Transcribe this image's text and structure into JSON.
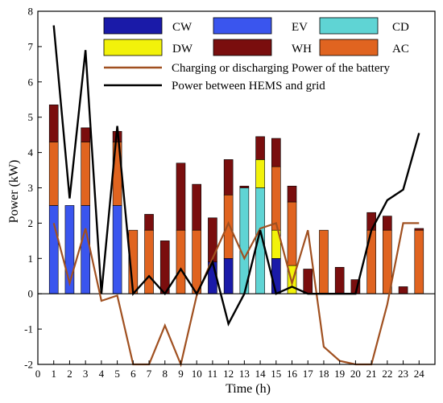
{
  "chart_data": {
    "type": "bar",
    "xlabel": "Time (h)",
    "ylabel": "Power (kW)",
    "xlim": [
      0,
      25
    ],
    "ylim": [
      -2,
      8
    ],
    "x_ticks": [
      0,
      1,
      2,
      3,
      4,
      5,
      6,
      7,
      8,
      9,
      10,
      11,
      12,
      13,
      14,
      15,
      16,
      17,
      18,
      19,
      20,
      21,
      22,
      23,
      24
    ],
    "y_ticks": [
      -2,
      -1,
      0,
      1,
      2,
      3,
      4,
      5,
      6,
      7,
      8
    ],
    "grid": false,
    "legend_placement": "top",
    "categories": [
      1,
      2,
      3,
      4,
      5,
      6,
      7,
      8,
      9,
      10,
      11,
      12,
      13,
      14,
      15,
      16,
      17,
      18,
      19,
      20,
      21,
      22,
      23,
      24
    ],
    "stacked_series": [
      {
        "key": "CW",
        "name": "CW",
        "color": "#1a1aa8",
        "values": [
          0,
          0,
          0,
          0,
          0,
          0,
          0,
          0,
          0,
          0,
          0.9,
          1.0,
          0,
          0,
          1.0,
          0,
          0,
          0,
          0,
          0,
          0,
          0,
          0,
          0
        ]
      },
      {
        "key": "EV",
        "name": "EV",
        "color": "#3a55ee",
        "values": [
          2.5,
          2.5,
          2.5,
          0,
          2.5,
          0,
          0,
          0,
          0,
          0,
          0,
          0,
          0,
          0,
          0,
          0,
          0,
          0,
          0,
          0,
          0,
          0,
          0,
          0
        ]
      },
      {
        "key": "CD",
        "name": "CD",
        "color": "#5fd4d4",
        "values": [
          0,
          0,
          0,
          0,
          0,
          0,
          0,
          0,
          0,
          0,
          0,
          0,
          3.0,
          3.0,
          0,
          0,
          0,
          0,
          0,
          0,
          0,
          0,
          0,
          0
        ]
      },
      {
        "key": "DW",
        "name": "DW",
        "color": "#f2f20a",
        "values": [
          0,
          0,
          0,
          0,
          0,
          0,
          0,
          0,
          0,
          0,
          0,
          0,
          0,
          0.8,
          0.8,
          0.8,
          0,
          0,
          0,
          0,
          0,
          0,
          0,
          0
        ]
      },
      {
        "key": "AC",
        "name": "AC",
        "color": "#e06420",
        "values": [
          1.8,
          0,
          1.8,
          0,
          1.8,
          1.8,
          1.8,
          0,
          1.8,
          1.8,
          0,
          1.8,
          0,
          0,
          1.8,
          1.8,
          0,
          1.8,
          0,
          0,
          1.8,
          1.8,
          0,
          1.8
        ]
      },
      {
        "key": "WH",
        "name": "WH",
        "color": "#7a0e0e",
        "values": [
          1.05,
          0,
          0.4,
          0,
          0.3,
          0,
          0.45,
          1.5,
          1.9,
          1.3,
          1.25,
          1.0,
          0.05,
          0.65,
          0.8,
          0.45,
          0.7,
          0,
          0.75,
          0.4,
          0.5,
          0.4,
          0.2,
          0.05
        ]
      }
    ],
    "line_series": [
      {
        "key": "battery",
        "name": "Charging or discharging Power of the battery",
        "color": "#a05020",
        "x": [
          1,
          2,
          3,
          4,
          5,
          6,
          7,
          8,
          9,
          10,
          11,
          12,
          13,
          14,
          15,
          16,
          17,
          18,
          19,
          20,
          21,
          22,
          23,
          24
        ],
        "values": [
          2.0,
          0.3,
          1.85,
          -0.2,
          -0.05,
          -2.0,
          -2.0,
          -0.9,
          -2.0,
          -0.05,
          1.0,
          2.0,
          1.0,
          1.85,
          2.0,
          0.3,
          1.8,
          -1.5,
          -1.9,
          -2.0,
          -2.0,
          -0.3,
          2.0,
          2.0
        ]
      },
      {
        "key": "grid",
        "name": "Power between HEMS and grid",
        "color": "#000000",
        "x": [
          1,
          2,
          3,
          4,
          5,
          6,
          7,
          8,
          9,
          10,
          11,
          12,
          13,
          14,
          15,
          16,
          17,
          18,
          19,
          20,
          21,
          22,
          23,
          24
        ],
        "values": [
          7.6,
          2.7,
          6.9,
          0,
          4.75,
          0,
          0.5,
          0,
          0.7,
          0,
          0.9,
          -0.85,
          0,
          1.8,
          0,
          0.2,
          0,
          0,
          0,
          0,
          1.8,
          2.65,
          2.95,
          4.55
        ]
      }
    ],
    "legend_layout": [
      [
        "CW",
        "EV",
        "CD"
      ],
      [
        "DW",
        "WH",
        "AC"
      ]
    ]
  }
}
